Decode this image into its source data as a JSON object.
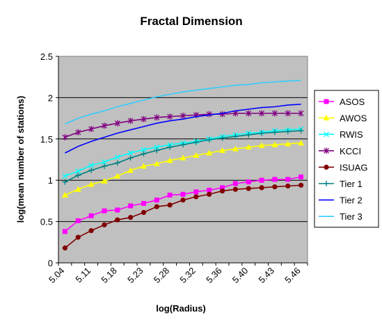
{
  "chart_data": {
    "type": "line",
    "title": "Fractal Dimension",
    "xlabel": "log(Radius)",
    "ylabel": "log(mean number of stations)",
    "ylim": [
      0,
      2.5
    ],
    "yticks": [
      "0",
      "0.5",
      "1",
      "1.5",
      "2",
      "2.5"
    ],
    "x_tick_labels": [
      "5.04",
      "5.11",
      "5.18",
      "5.23",
      "5.28",
      "5.32",
      "5.36",
      "5.40",
      "5.43",
      "5.46"
    ],
    "grid": "horizontal",
    "legend_position": "right",
    "plot_background": "#c0c0c0",
    "series": [
      {
        "name": "ASOS",
        "color": "#ff00ff",
        "marker": "square",
        "values": [
          0.38,
          0.51,
          0.57,
          0.63,
          0.64,
          0.69,
          0.72,
          0.76,
          0.82,
          0.83,
          0.86,
          0.88,
          0.91,
          0.96,
          0.98,
          1.0,
          1.01,
          1.01,
          1.04
        ]
      },
      {
        "name": "AWOS",
        "color": "#ffff00",
        "marker": "triangle",
        "values": [
          0.82,
          0.89,
          0.95,
          0.99,
          1.05,
          1.12,
          1.17,
          1.2,
          1.24,
          1.27,
          1.3,
          1.33,
          1.36,
          1.38,
          1.4,
          1.42,
          1.43,
          1.44,
          1.45
        ]
      },
      {
        "name": "RWIS",
        "color": "#00ffff",
        "marker": "x",
        "values": [
          1.05,
          1.11,
          1.18,
          1.22,
          1.28,
          1.33,
          1.37,
          1.4,
          1.43,
          1.45,
          1.47,
          1.5,
          1.53,
          1.55,
          1.57,
          1.58,
          1.6,
          1.61,
          1.62
        ]
      },
      {
        "name": "KCCI",
        "color": "#800080",
        "marker": "asterisk",
        "values": [
          1.52,
          1.58,
          1.62,
          1.66,
          1.69,
          1.72,
          1.74,
          1.76,
          1.77,
          1.78,
          1.79,
          1.8,
          1.8,
          1.81,
          1.81,
          1.81,
          1.81,
          1.81,
          1.81
        ]
      },
      {
        "name": "ISUAG",
        "color": "#800000",
        "marker": "circle",
        "values": [
          0.18,
          0.31,
          0.39,
          0.46,
          0.52,
          0.55,
          0.61,
          0.68,
          0.7,
          0.76,
          0.8,
          0.83,
          0.87,
          0.89,
          0.9,
          0.91,
          0.92,
          0.93,
          0.94
        ]
      },
      {
        "name": "Tier 1",
        "color": "#008080",
        "marker": "plus",
        "values": [
          0.98,
          1.06,
          1.12,
          1.17,
          1.21,
          1.27,
          1.32,
          1.36,
          1.4,
          1.43,
          1.46,
          1.49,
          1.51,
          1.53,
          1.55,
          1.57,
          1.58,
          1.59,
          1.6
        ]
      },
      {
        "name": "Tier 2",
        "color": "#0000ff",
        "marker": "none",
        "values": [
          1.33,
          1.41,
          1.47,
          1.52,
          1.57,
          1.61,
          1.65,
          1.69,
          1.72,
          1.74,
          1.77,
          1.79,
          1.81,
          1.84,
          1.86,
          1.88,
          1.89,
          1.91,
          1.92
        ]
      },
      {
        "name": "Tier 3",
        "color": "#33ccff",
        "marker": "none",
        "values": [
          1.68,
          1.75,
          1.8,
          1.84,
          1.89,
          1.93,
          1.97,
          2.01,
          2.04,
          2.07,
          2.09,
          2.11,
          2.13,
          2.15,
          2.16,
          2.18,
          2.19,
          2.2,
          2.21
        ]
      }
    ]
  }
}
